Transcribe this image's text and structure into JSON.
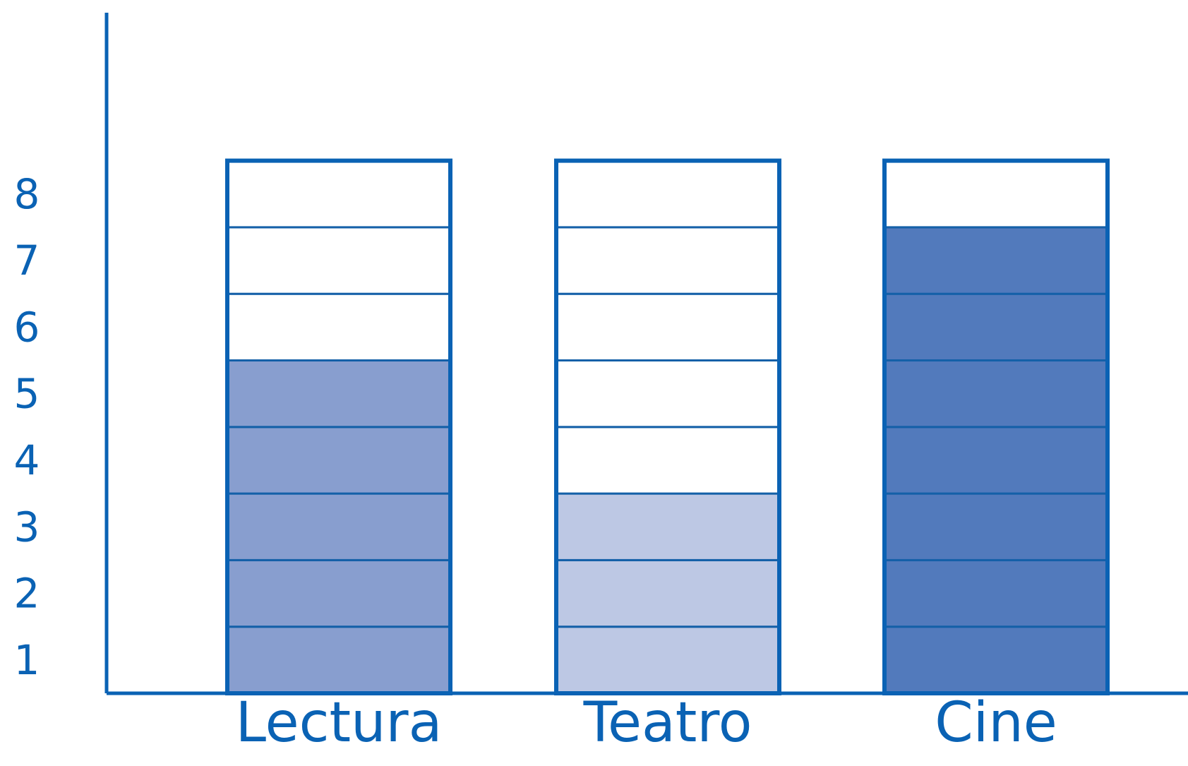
{
  "colors": {
    "axis": "#0a62b4",
    "outline": "#0a62b4",
    "cell_line": "#1460a8",
    "empty": "#ffffff"
  },
  "chart_data": {
    "type": "bar",
    "categories": [
      "Lectura",
      "Teatro",
      "Cine"
    ],
    "values": [
      5,
      3,
      7
    ],
    "capacity": 8,
    "bar_colors": [
      "#889ecf",
      "#bdc8e4",
      "#527abc"
    ],
    "yticks": [
      "1",
      "2",
      "3",
      "4",
      "5",
      "6",
      "7",
      "8"
    ],
    "ylim": [
      0,
      8
    ],
    "grid": false,
    "legend": "none"
  }
}
